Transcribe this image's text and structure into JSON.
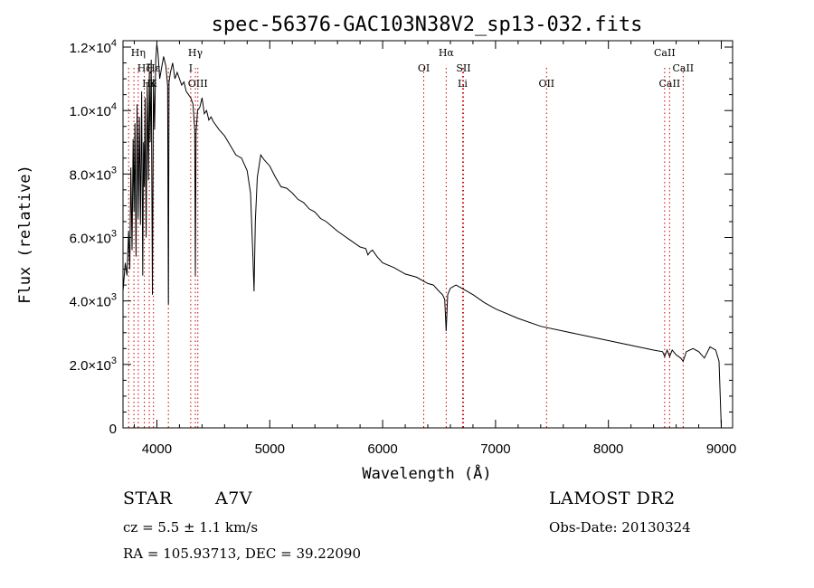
{
  "chart_data": {
    "type": "line",
    "title": "spec-56376-GAC103N38V2_sp13-032.fits",
    "xlabel": "Wavelength (Å)",
    "ylabel": "Flux (relative)",
    "xlim": [
      3700,
      9100
    ],
    "ylim": [
      0,
      12200
    ],
    "x_ticks": [
      4000,
      5000,
      6000,
      7000,
      8000,
      9000
    ],
    "y_ticks": [
      {
        "value": 0,
        "mant": "0",
        "exp": ""
      },
      {
        "value": 2000,
        "mant": "2.0×10",
        "exp": "3"
      },
      {
        "value": 4000,
        "mant": "4.0×10",
        "exp": "3"
      },
      {
        "value": 6000,
        "mant": "6.0×10",
        "exp": "3"
      },
      {
        "value": 8000,
        "mant": "8.0×10",
        "exp": "3"
      },
      {
        "value": 10000,
        "mant": "1.0×10",
        "exp": "4"
      },
      {
        "value": 12000,
        "mant": "1.2×10",
        "exp": "4"
      }
    ],
    "grid": false,
    "line_color": "#000000",
    "marker_color": "#cc0000",
    "series": [
      {
        "x": [
          3700,
          3720,
          3735,
          3750,
          3760,
          3770,
          3780,
          3790,
          3798,
          3806,
          3815,
          3825,
          3835,
          3845,
          3855,
          3865,
          3875,
          3882,
          3889,
          3896,
          3905,
          3915,
          3925,
          3933,
          3940,
          3950,
          3960,
          3970,
          3980,
          3990,
          4000,
          4010,
          4025,
          4040,
          4060,
          4080,
          4095,
          4102,
          4108,
          4120,
          4140,
          4160,
          4180,
          4200,
          4220,
          4240,
          4260,
          4280,
          4300,
          4320,
          4335,
          4341,
          4347,
          4360,
          4380,
          4400,
          4420,
          4440,
          4460,
          4480,
          4500,
          4550,
          4600,
          4650,
          4700,
          4750,
          4800,
          4830,
          4850,
          4861,
          4872,
          4890,
          4920,
          4950,
          5000,
          5050,
          5100,
          5150,
          5200,
          5250,
          5300,
          5350,
          5400,
          5450,
          5500,
          5600,
          5700,
          5800,
          5850,
          5870,
          5890,
          5910,
          5950,
          6000,
          6100,
          6200,
          6300,
          6400,
          6450,
          6500,
          6530,
          6550,
          6563,
          6576,
          6600,
          6650,
          6700,
          6800,
          6900,
          7000,
          7200,
          7400,
          7600,
          7800,
          8000,
          8200,
          8400,
          8480,
          8498,
          8520,
          8542,
          8565,
          8600,
          8640,
          8662,
          8690,
          8750,
          8800,
          8850,
          8900,
          8950,
          8980,
          9000
        ],
        "y": [
          4300,
          5200,
          4800,
          6200,
          5000,
          8200,
          5600,
          9100,
          6800,
          9600,
          5400,
          10200,
          6600,
          9800,
          6400,
          10600,
          4800,
          9000,
          7600,
          10400,
          6000,
          10900,
          7800,
          11200,
          9000,
          11600,
          4200,
          11000,
          9400,
          11600,
          12100,
          11800,
          11000,
          11300,
          11700,
          11400,
          10800,
          3900,
          10900,
          11200,
          11500,
          11000,
          11200,
          11000,
          10800,
          10900,
          10600,
          10500,
          10400,
          10200,
          9400,
          4800,
          9300,
          10000,
          10100,
          10400,
          9900,
          10000,
          9700,
          9800,
          9650,
          9400,
          9200,
          8900,
          8600,
          8500,
          8100,
          7400,
          5500,
          4300,
          6500,
          7900,
          8600,
          8450,
          8250,
          7900,
          7600,
          7550,
          7400,
          7200,
          7100,
          6900,
          6800,
          6600,
          6500,
          6200,
          5950,
          5700,
          5650,
          5450,
          5550,
          5600,
          5400,
          5200,
          5050,
          4850,
          4750,
          4550,
          4500,
          4300,
          4200,
          4050,
          3050,
          4200,
          4400,
          4500,
          4400,
          4200,
          3950,
          3750,
          3450,
          3200,
          3050,
          2900,
          2750,
          2600,
          2450,
          2400,
          2250,
          2450,
          2250,
          2450,
          2300,
          2200,
          2100,
          2400,
          2500,
          2400,
          2200,
          2550,
          2450,
          2100,
          0
        ]
      }
    ],
    "annotations": [
      {
        "label": "Hη",
        "x": 3835,
        "row": 1
      },
      {
        "label": "Hζ",
        "x": 3889,
        "row": 2
      },
      {
        "label": "Hε",
        "x": 3970,
        "row": 2
      },
      {
        "label": "He",
        "x": 3934,
        "row": 3
      },
      {
        "label": "K",
        "x": 3965,
        "row": 3
      },
      {
        "label": "Hγ",
        "x": 4341,
        "row": 1
      },
      {
        "label": "I",
        "x": 4300,
        "row": 2
      },
      {
        "label": "OIII",
        "x": 4363,
        "row": 3
      },
      {
        "label": "OI",
        "x": 6364,
        "row": 2
      },
      {
        "label": "Hα",
        "x": 6563,
        "row": 1
      },
      {
        "label": "SII",
        "x": 6716,
        "row": 2
      },
      {
        "label": "Li",
        "x": 6708,
        "row": 3
      },
      {
        "label": "OII",
        "x": 7452,
        "row": 3
      },
      {
        "label": "CaII",
        "x": 8498,
        "row": 1
      },
      {
        "label": "CaII",
        "x": 8662,
        "row": 2
      },
      {
        "label": "CaII",
        "x": 8542,
        "row": 3
      }
    ],
    "marker_lines": [
      3750,
      3797,
      3835,
      3889,
      3933,
      3970,
      4102,
      4300,
      4341,
      4363,
      6364,
      6563,
      6708,
      6716,
      7452,
      8498,
      8542,
      8662
    ]
  },
  "info": {
    "object_type": "STAR",
    "subclass": "A7V",
    "cz": "cz = 5.5 ± 1.1 km/s",
    "coords": "RA = 105.93713, DEC =  39.22090",
    "survey": "LAMOST DR2",
    "obs_date": "Obs-Date: 20130324"
  }
}
